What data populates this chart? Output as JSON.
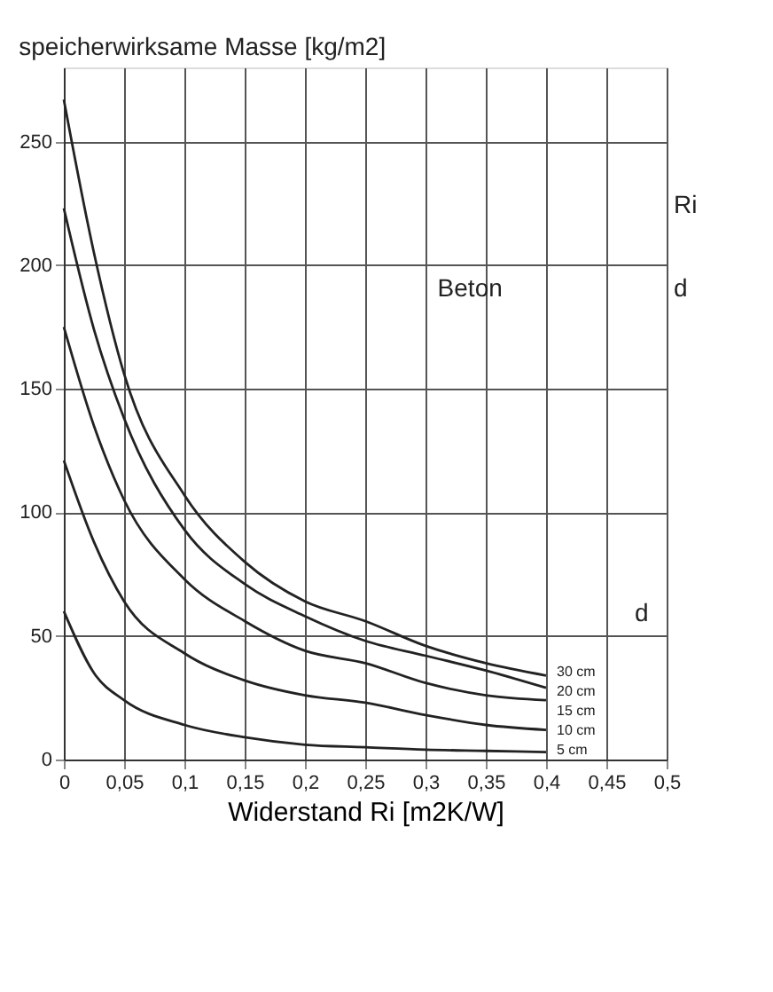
{
  "chart_data": {
    "type": "line",
    "ylabel": "speicherwirksame Masse [kg/m2]",
    "xlabel": "Widerstand Ri [m2K/W]",
    "x": [
      0,
      0.025,
      0.05,
      0.1,
      0.15,
      0.2,
      0.25,
      0.3,
      0.35,
      0.4
    ],
    "series": [
      {
        "name": "30 cm",
        "color": "#222222",
        "values": [
          267,
          205,
          156,
          107,
          80,
          64,
          56,
          46,
          39,
          34
        ]
      },
      {
        "name": "20 cm",
        "color": "#222222",
        "values": [
          223,
          174,
          138,
          93,
          71,
          58,
          48,
          42,
          36,
          29
        ]
      },
      {
        "name": "15 cm",
        "color": "#222222",
        "values": [
          175,
          135,
          105,
          73,
          56,
          44,
          39,
          31,
          26,
          24
        ]
      },
      {
        "name": "10 cm",
        "color": "#222222",
        "values": [
          121,
          88,
          64,
          43,
          32,
          26,
          23,
          18,
          14,
          12
        ]
      },
      {
        "name": "5 cm",
        "color": "#222222",
        "values": [
          60,
          35,
          24,
          14,
          9,
          6,
          5,
          4,
          3.5,
          3
        ]
      }
    ],
    "annotations": [
      "Ri",
      "d",
      "Beton",
      "d"
    ],
    "xlim": [
      0,
      0.5
    ],
    "ylim": [
      0,
      280
    ],
    "xticks": [
      0,
      {
        "value": 0.05,
        "label": "0,05"
      },
      {
        "value": 0.1,
        "label": "0,1"
      },
      {
        "value": 0.15,
        "label": "0,15"
      },
      {
        "value": 0.2,
        "label": "0,2"
      },
      {
        "value": 0.25,
        "label": "0,25"
      },
      {
        "value": 0.3,
        "label": "0,3"
      },
      {
        "value": 0.35,
        "label": "0,35"
      },
      {
        "value": 0.4,
        "label": "0,4"
      },
      {
        "value": 0.45,
        "label": "0,45"
      },
      {
        "value": 0.5,
        "label": "0,5"
      }
    ],
    "yticks": [
      0,
      50,
      100,
      150,
      200,
      250
    ],
    "grid": true,
    "marker": "none",
    "line_style": "solid"
  }
}
